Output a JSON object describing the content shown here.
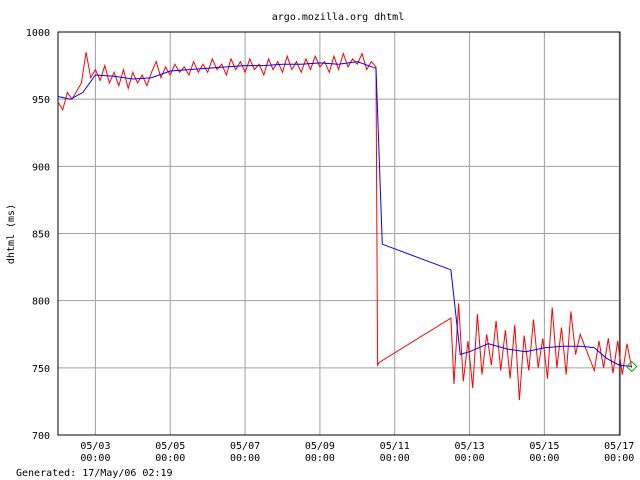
{
  "chart_data": {
    "type": "line",
    "title": "argo.mozilla.org dhtml",
    "ylabel": "dhtml (ms)",
    "xlabel": "",
    "ylim": [
      700,
      1000
    ],
    "xlim": [
      "2006-05-02 00:00",
      "2006-05-17 00:30"
    ],
    "grid": true,
    "yticks": [
      700,
      750,
      800,
      850,
      900,
      950,
      1000
    ],
    "xticks": [
      {
        "date": "05/03",
        "time": "00:00"
      },
      {
        "date": "05/05",
        "time": "00:00"
      },
      {
        "date": "05/07",
        "time": "00:00"
      },
      {
        "date": "05/09",
        "time": "00:00"
      },
      {
        "date": "05/11",
        "time": "00:00"
      },
      {
        "date": "05/13",
        "time": "00:00"
      },
      {
        "date": "05/15",
        "time": "00:00"
      },
      {
        "date": "05/17",
        "time": "00:00"
      }
    ],
    "series": [
      {
        "name": "",
        "role": "raw",
        "color": "#ff0000",
        "points": [
          [
            "2006-05-02 00:00",
            948
          ],
          [
            "2006-05-02 03:00",
            942
          ],
          [
            "2006-05-02 06:00",
            955
          ],
          [
            "2006-05-02 09:00",
            950
          ],
          [
            "2006-05-02 12:00",
            956
          ],
          [
            "2006-05-02 15:00",
            962
          ],
          [
            "2006-05-02 18:00",
            985
          ],
          [
            "2006-05-02 21:00",
            966
          ],
          [
            "2006-05-03 00:00",
            972
          ],
          [
            "2006-05-03 03:00",
            964
          ],
          [
            "2006-05-03 06:00",
            975
          ],
          [
            "2006-05-03 09:00",
            962
          ],
          [
            "2006-05-03 12:00",
            970
          ],
          [
            "2006-05-03 15:00",
            960
          ],
          [
            "2006-05-03 18:00",
            972
          ],
          [
            "2006-05-03 21:00",
            958
          ],
          [
            "2006-05-04 00:00",
            970
          ],
          [
            "2006-05-04 03:00",
            962
          ],
          [
            "2006-05-04 06:00",
            968
          ],
          [
            "2006-05-04 09:00",
            960
          ],
          [
            "2006-05-04 12:00",
            970
          ],
          [
            "2006-05-04 15:00",
            978
          ],
          [
            "2006-05-04 18:00",
            966
          ],
          [
            "2006-05-04 21:00",
            974
          ],
          [
            "2006-05-05 00:00",
            968
          ],
          [
            "2006-05-05 03:00",
            976
          ],
          [
            "2006-05-05 06:00",
            970
          ],
          [
            "2006-05-05 09:00",
            974
          ],
          [
            "2006-05-05 12:00",
            968
          ],
          [
            "2006-05-05 15:00",
            978
          ],
          [
            "2006-05-05 18:00",
            970
          ],
          [
            "2006-05-05 21:00",
            976
          ],
          [
            "2006-05-06 00:00",
            970
          ],
          [
            "2006-05-06 03:00",
            980
          ],
          [
            "2006-05-06 06:00",
            972
          ],
          [
            "2006-05-06 09:00",
            976
          ],
          [
            "2006-05-06 12:00",
            968
          ],
          [
            "2006-05-06 15:00",
            980
          ],
          [
            "2006-05-06 18:00",
            972
          ],
          [
            "2006-05-06 21:00",
            978
          ],
          [
            "2006-05-07 00:00",
            970
          ],
          [
            "2006-05-07 03:00",
            980
          ],
          [
            "2006-05-07 06:00",
            972
          ],
          [
            "2006-05-07 09:00",
            976
          ],
          [
            "2006-05-07 12:00",
            968
          ],
          [
            "2006-05-07 15:00",
            980
          ],
          [
            "2006-05-07 18:00",
            972
          ],
          [
            "2006-05-07 21:00",
            978
          ],
          [
            "2006-05-08 00:00",
            970
          ],
          [
            "2006-05-08 03:00",
            982
          ],
          [
            "2006-05-08 06:00",
            972
          ],
          [
            "2006-05-08 09:00",
            978
          ],
          [
            "2006-05-08 12:00",
            970
          ],
          [
            "2006-05-08 15:00",
            980
          ],
          [
            "2006-05-08 18:00",
            972
          ],
          [
            "2006-05-08 21:00",
            982
          ],
          [
            "2006-05-09 00:00",
            974
          ],
          [
            "2006-05-09 03:00",
            978
          ],
          [
            "2006-05-09 06:00",
            970
          ],
          [
            "2006-05-09 09:00",
            982
          ],
          [
            "2006-05-09 12:00",
            972
          ],
          [
            "2006-05-09 15:00",
            984
          ],
          [
            "2006-05-09 18:00",
            974
          ],
          [
            "2006-05-09 21:00",
            980
          ],
          [
            "2006-05-10 00:00",
            976
          ],
          [
            "2006-05-10 03:00",
            984
          ],
          [
            "2006-05-10 06:00",
            972
          ],
          [
            "2006-05-10 09:00",
            978
          ],
          [
            "2006-05-10 12:00",
            974
          ],
          [
            "2006-05-10 13:00",
            752
          ],
          [
            "2006-05-10 14:00",
            754
          ],
          [
            "2006-05-12 12:00",
            787
          ],
          [
            "2006-05-12 14:00",
            738
          ],
          [
            "2006-05-12 17:00",
            798
          ],
          [
            "2006-05-12 20:00",
            740
          ],
          [
            "2006-05-12 23:00",
            770
          ],
          [
            "2006-05-13 02:00",
            735
          ],
          [
            "2006-05-13 05:00",
            790
          ],
          [
            "2006-05-13 08:00",
            745
          ],
          [
            "2006-05-13 11:00",
            775
          ],
          [
            "2006-05-13 14:00",
            752
          ],
          [
            "2006-05-13 17:00",
            785
          ],
          [
            "2006-05-13 20:00",
            748
          ],
          [
            "2006-05-13 23:00",
            778
          ],
          [
            "2006-05-14 02:00",
            742
          ],
          [
            "2006-05-14 05:00",
            782
          ],
          [
            "2006-05-14 08:00",
            726
          ],
          [
            "2006-05-14 11:00",
            774
          ],
          [
            "2006-05-14 14:00",
            748
          ],
          [
            "2006-05-14 17:00",
            786
          ],
          [
            "2006-05-14 20:00",
            750
          ],
          [
            "2006-05-14 23:00",
            772
          ],
          [
            "2006-05-15 02:00",
            742
          ],
          [
            "2006-05-15 05:00",
            795
          ],
          [
            "2006-05-15 08:00",
            750
          ],
          [
            "2006-05-15 11:00",
            780
          ],
          [
            "2006-05-15 14:00",
            745
          ],
          [
            "2006-05-15 17:00",
            792
          ],
          [
            "2006-05-15 20:00",
            760
          ],
          [
            "2006-05-15 23:00",
            775
          ],
          [
            "2006-05-16 08:00",
            748
          ],
          [
            "2006-05-16 11:00",
            770
          ],
          [
            "2006-05-16 14:00",
            750
          ],
          [
            "2006-05-16 17:00",
            772
          ],
          [
            "2006-05-16 20:00",
            746
          ],
          [
            "2006-05-16 23:00",
            770
          ],
          [
            "2006-05-17 02:00",
            745
          ],
          [
            "2006-05-17 05:00",
            768
          ],
          [
            "2006-05-17 08:00",
            750
          ]
        ]
      },
      {
        "name": "",
        "role": "average",
        "color": "#0000ff",
        "points": [
          [
            "2006-05-02 00:00",
            952
          ],
          [
            "2006-05-02 08:00",
            950
          ],
          [
            "2006-05-02 16:00",
            955
          ],
          [
            "2006-05-03 00:00",
            968
          ],
          [
            "2006-05-03 12:00",
            967
          ],
          [
            "2006-05-04 00:00",
            965
          ],
          [
            "2006-05-04 12:00",
            966
          ],
          [
            "2006-05-05 00:00",
            971
          ],
          [
            "2006-05-05 12:00",
            972
          ],
          [
            "2006-05-06 00:00",
            973
          ],
          [
            "2006-05-06 12:00",
            974
          ],
          [
            "2006-05-07 00:00",
            975
          ],
          [
            "2006-05-07 12:00",
            975
          ],
          [
            "2006-05-08 00:00",
            976
          ],
          [
            "2006-05-08 12:00",
            976
          ],
          [
            "2006-05-09 00:00",
            977
          ],
          [
            "2006-05-09 12:00",
            976
          ],
          [
            "2006-05-10 00:00",
            978
          ],
          [
            "2006-05-10 12:00",
            973
          ],
          [
            "2006-05-10 16:00",
            842
          ],
          [
            "2006-05-12 12:00",
            823
          ],
          [
            "2006-05-12 18:00",
            760
          ],
          [
            "2006-05-13 00:00",
            762
          ],
          [
            "2006-05-13 12:00",
            768
          ],
          [
            "2006-05-14 00:00",
            764
          ],
          [
            "2006-05-14 12:00",
            762
          ],
          [
            "2006-05-15 00:00",
            765
          ],
          [
            "2006-05-15 12:00",
            766
          ],
          [
            "2006-05-16 00:00",
            766
          ],
          [
            "2006-05-16 08:00",
            765
          ],
          [
            "2006-05-16 16:00",
            757
          ],
          [
            "2006-05-17 00:00",
            752
          ],
          [
            "2006-05-17 08:00",
            751
          ]
        ]
      }
    ],
    "last_value": 751,
    "marker_color": "#00aa00"
  },
  "footer": {
    "generated": "Generated: 17/May/06 02:19"
  }
}
